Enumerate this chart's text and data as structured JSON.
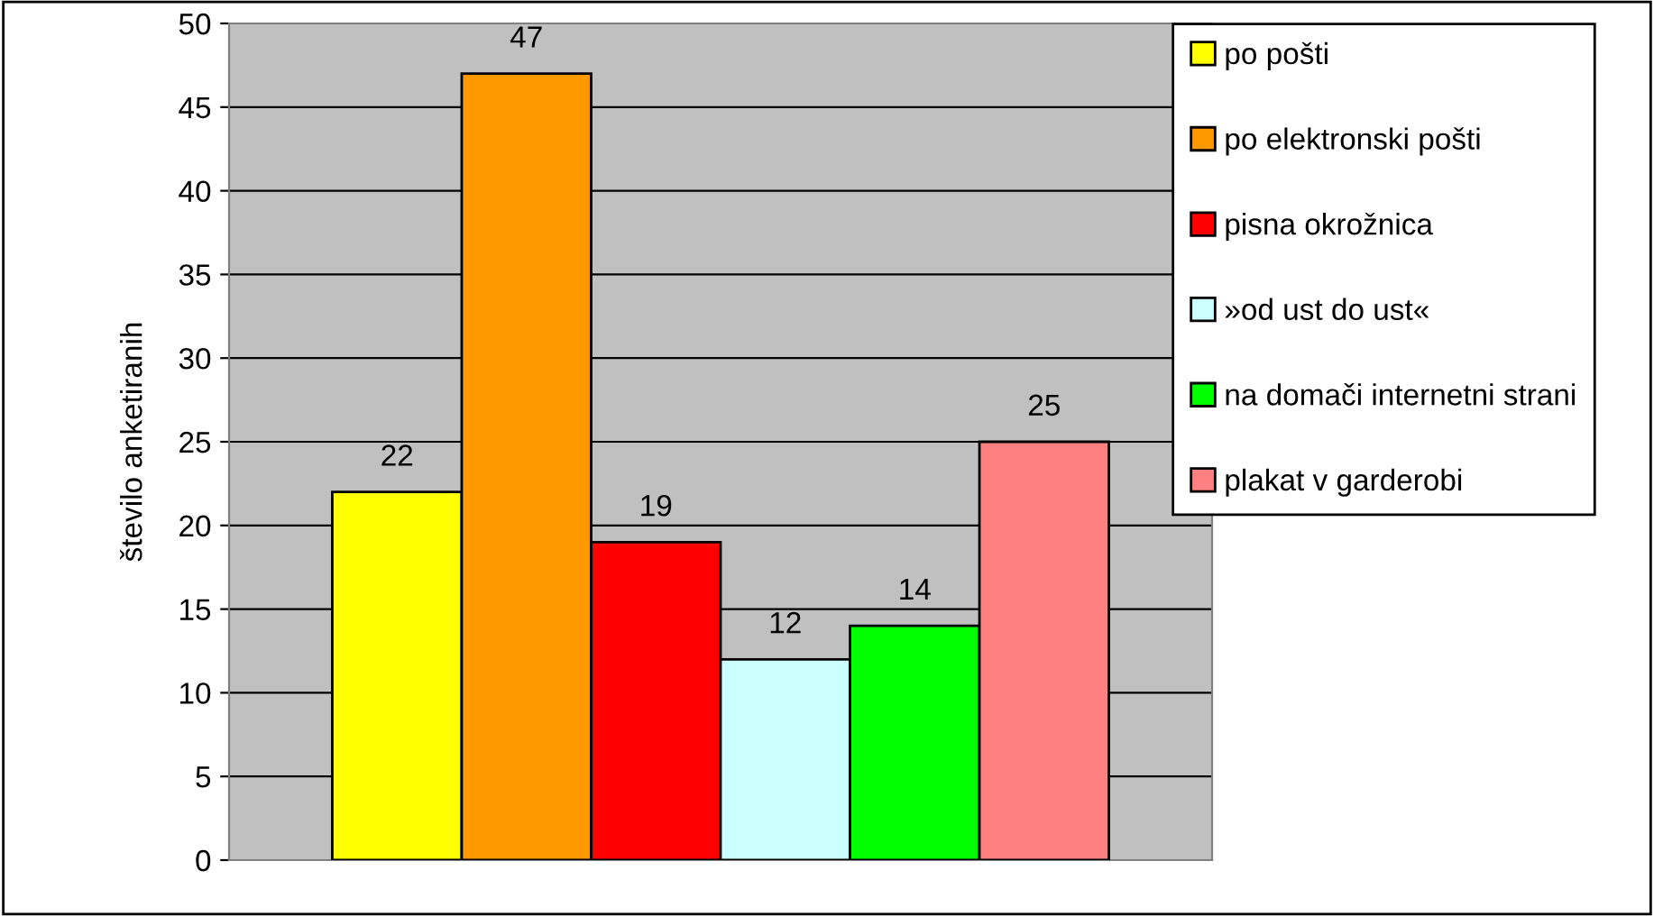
{
  "chart_data": {
    "type": "bar",
    "ylabel": "število anketiranih",
    "categories": [
      null
    ],
    "series": [
      {
        "name": "po pošti",
        "color": "#ffff00",
        "values": [
          22
        ]
      },
      {
        "name": "po elektronski pošti",
        "color": "#ff9900",
        "values": [
          47
        ]
      },
      {
        "name": "pisna okrožnica",
        "color": "#ff0000",
        "values": [
          19
        ]
      },
      {
        "name": "»od ust do ust«",
        "color": "#ccffff",
        "values": [
          12
        ]
      },
      {
        "name": "na domači internetni strani",
        "color": "#00ff00",
        "values": [
          14
        ]
      },
      {
        "name": "plakat v garderobi",
        "color": "#ff8080",
        "values": [
          25
        ]
      }
    ],
    "ylim": [
      0,
      50
    ],
    "yticks": [
      0,
      5,
      10,
      15,
      20,
      25,
      30,
      35,
      40,
      45,
      50
    ],
    "grid": "y",
    "legend": "right",
    "data_labels": true
  }
}
